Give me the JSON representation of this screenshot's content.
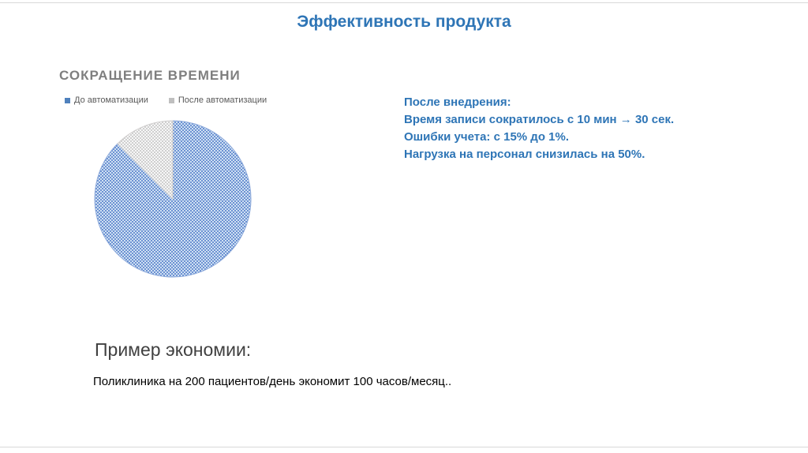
{
  "slide": {
    "title": "Эффективность продукта",
    "colors": {
      "accent_blue": "#2e75b6",
      "chart_title_gray": "#7f7f7f",
      "rule_gray": "#d9d9d9"
    }
  },
  "chart": {
    "title": "СОКРАЩЕНИЕ ВРЕМЕНИ",
    "legend": [
      {
        "label": "До автоматизации",
        "color": "#4f81bd"
      },
      {
        "label": "После автоматизации",
        "color": "#bfbfbf"
      }
    ]
  },
  "chart_data": {
    "type": "pie",
    "title": "СОКРАЩЕНИЕ ВРЕМЕНИ",
    "labels": [
      "До автоматизации",
      "После автоматизации"
    ],
    "values": [
      87.5,
      12.5
    ],
    "legend_position": "top",
    "start_angle_deg": 0,
    "direction": "clockwise",
    "pattern": "dotted-texture-fill",
    "pattern_colors": [
      {
        "bg": "#cfe0f3",
        "dot": "#4472c4"
      },
      {
        "bg": "#f7f7f7",
        "dot": "#bfbfbf"
      }
    ],
    "slice_strokes": [
      "#8eaadb",
      "#d0cece"
    ]
  },
  "highlights": {
    "heading": "После внедрения:",
    "lines": [
      "Время записи сократилось с 10 мин → 30 сек.",
      "Ошибки учета: с 15% до 1%.",
      "Нагрузка на персонал снизилась на 50%."
    ]
  },
  "example": {
    "title": "Пример экономии:",
    "body": "Поликлиника на 200 пациентов/день экономит 100 часов/месяц.."
  }
}
